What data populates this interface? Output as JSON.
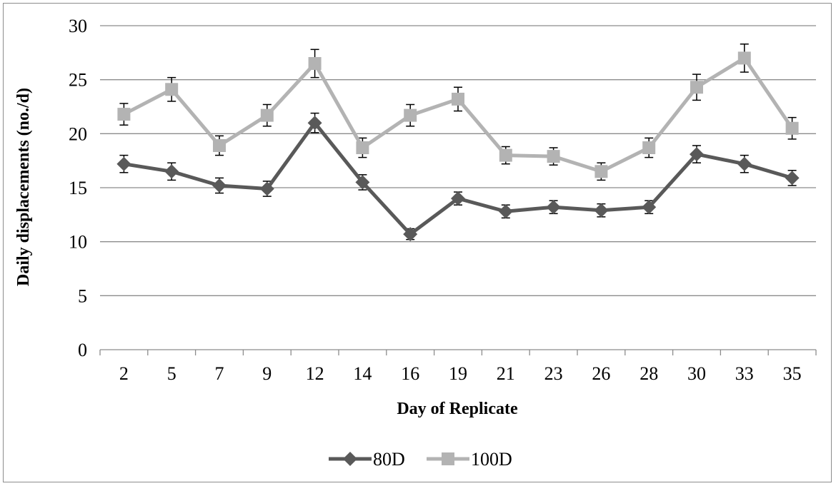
{
  "chart_data": {
    "type": "line",
    "title": "",
    "xlabel": "Day of Replicate",
    "ylabel": "Daily displacements (no./d)",
    "categories": [
      "2",
      "5",
      "7",
      "9",
      "12",
      "14",
      "16",
      "19",
      "21",
      "23",
      "26",
      "28",
      "30",
      "33",
      "35"
    ],
    "ylim": [
      0,
      30
    ],
    "yticks": [
      0,
      5,
      10,
      15,
      20,
      25,
      30
    ],
    "grid": "horizontal",
    "legend_position": "bottom",
    "series": [
      {
        "name": "80D",
        "color": "#595959",
        "marker": "diamond",
        "values": [
          17.2,
          16.5,
          15.2,
          14.9,
          21.0,
          15.5,
          10.7,
          14.0,
          12.8,
          13.2,
          12.9,
          13.2,
          18.1,
          17.2,
          15.9
        ],
        "error": [
          0.8,
          0.8,
          0.7,
          0.7,
          0.9,
          0.7,
          0.5,
          0.6,
          0.6,
          0.6,
          0.6,
          0.6,
          0.8,
          0.8,
          0.7
        ]
      },
      {
        "name": "100D",
        "color": "#b3b3b3",
        "marker": "square",
        "values": [
          21.8,
          24.1,
          18.9,
          21.7,
          26.5,
          18.7,
          21.7,
          23.2,
          18.0,
          17.9,
          16.5,
          18.7,
          24.3,
          27.0,
          20.5
        ],
        "error": [
          1.0,
          1.1,
          0.9,
          1.0,
          1.3,
          0.9,
          1.0,
          1.1,
          0.8,
          0.8,
          0.8,
          0.9,
          1.2,
          1.3,
          1.0
        ]
      }
    ]
  }
}
